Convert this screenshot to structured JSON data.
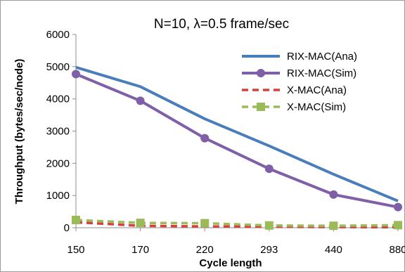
{
  "chart_data": {
    "type": "line",
    "title": "N=10, λ=0.5 frame/sec",
    "xlabel": "Cycle length",
    "ylabel": "Throughput  (bytes/sec/node)",
    "categories": [
      "150",
      "170",
      "220",
      "293",
      "440",
      "880"
    ],
    "ylim": [
      0,
      6000
    ],
    "yticks": [
      "0",
      "1000",
      "2000",
      "3000",
      "4000",
      "5000",
      "6000"
    ],
    "grid": false,
    "legend_position": "top-right",
    "series": [
      {
        "name": "RIX-MAC(Ana)",
        "values": [
          4980,
          4380,
          3380,
          2540,
          1660,
          830
        ],
        "color": "#4a7ebb",
        "dash": "solid",
        "marker": "none"
      },
      {
        "name": "RIX-MAC(Sim)",
        "values": [
          4770,
          3940,
          2780,
          1830,
          1030,
          640
        ],
        "color": "#7f5fa8",
        "dash": "solid",
        "marker": "circle"
      },
      {
        "name": "X-MAC(Ana)",
        "values": [
          170,
          60,
          40,
          30,
          20,
          15
        ],
        "color": "#d6403c",
        "dash": "dashed",
        "marker": "none"
      },
      {
        "name": "X-MAC(Sim)",
        "values": [
          240,
          150,
          140,
          70,
          60,
          80
        ],
        "color": "#9bbb59",
        "dash": "dashed",
        "marker": "square"
      }
    ]
  }
}
